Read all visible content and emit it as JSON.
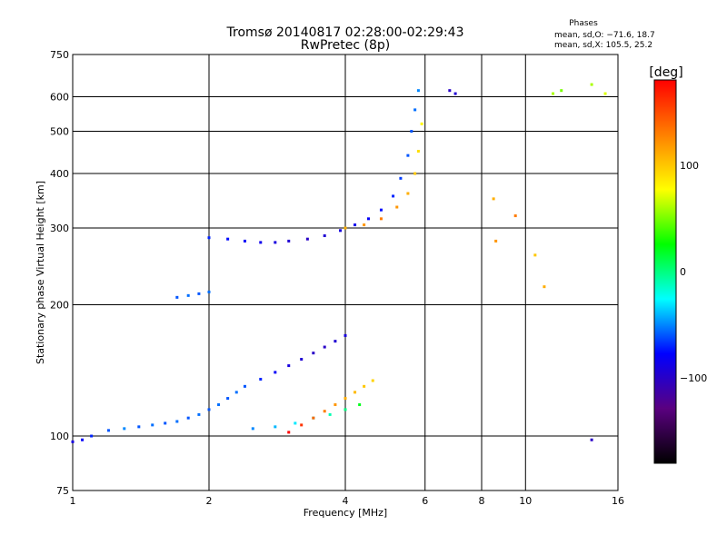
{
  "chart_data": {
    "type": "scatter",
    "title": "Tromsø 20140817 02:28:00-02:29:43",
    "subtitle": "RwPretec (8p)",
    "xlabel": "Frequency [MHz]",
    "ylabel": "Stationary phase Virtual Height [km]",
    "x_scale": "log",
    "y_scale": "log",
    "xlim": [
      1,
      16
    ],
    "ylim": [
      75,
      750
    ],
    "x_ticks": [
      1,
      2,
      4,
      6,
      8,
      10,
      16
    ],
    "x_tick_labels": [
      "1",
      "2",
      "4",
      "6",
      "8",
      "10",
      "16"
    ],
    "y_ticks": [
      75,
      100,
      200,
      300,
      400,
      500,
      600,
      750
    ],
    "y_tick_labels": [
      "75",
      "100",
      "200",
      "300",
      "400",
      "500",
      "600",
      "750"
    ],
    "grid": true,
    "phases_label": "Phases",
    "stats": [
      "mean, sd,O: −71.6, 18.7",
      "mean, sd,X: 105.5, 25.2"
    ],
    "colorbar": {
      "label": "[deg]",
      "range": [
        -180,
        180
      ],
      "ticks": [
        100,
        0,
        -100
      ],
      "tick_labels": [
        "100",
        "0",
        "−100"
      ],
      "colormap": [
        "#000000",
        "#5a0080",
        "#0000ff",
        "#00ffff",
        "#00ff00",
        "#ffff00",
        "#ff8000",
        "#ff0000"
      ]
    },
    "series": [
      {
        "points": [
          [
            1.0,
            97,
            -90
          ],
          [
            1.05,
            98,
            -80
          ],
          [
            1.1,
            100,
            -70
          ],
          [
            1.2,
            103,
            -60
          ],
          [
            1.3,
            104,
            -50
          ],
          [
            1.4,
            105,
            -60
          ],
          [
            1.5,
            106,
            -55
          ],
          [
            1.6,
            107,
            -60
          ],
          [
            1.7,
            108,
            -55
          ],
          [
            1.8,
            110,
            -60
          ],
          [
            1.9,
            112,
            -55
          ],
          [
            2.0,
            115,
            -60
          ],
          [
            2.1,
            118,
            -55
          ],
          [
            2.2,
            122,
            -60
          ],
          [
            2.3,
            126,
            -55
          ],
          [
            2.4,
            130,
            -60
          ],
          [
            2.6,
            135,
            -70
          ],
          [
            2.8,
            140,
            -80
          ],
          [
            3.0,
            145,
            -90
          ],
          [
            3.2,
            150,
            -95
          ],
          [
            3.4,
            155,
            -100
          ],
          [
            3.6,
            160,
            -100
          ],
          [
            3.8,
            165,
            -95
          ],
          [
            4.0,
            170,
            -90
          ],
          [
            2.5,
            104,
            -50
          ],
          [
            2.8,
            105,
            -40
          ],
          [
            3.1,
            107,
            -30
          ],
          [
            3.4,
            110,
            -20
          ],
          [
            3.7,
            112,
            -10
          ],
          [
            4.0,
            115,
            0
          ],
          [
            4.3,
            118,
            20
          ],
          [
            3.0,
            102,
            180
          ],
          [
            3.2,
            106,
            160
          ],
          [
            3.4,
            110,
            140
          ],
          [
            3.6,
            114,
            130
          ],
          [
            3.8,
            118,
            120
          ],
          [
            4.0,
            122,
            110
          ],
          [
            4.2,
            126,
            105
          ],
          [
            4.4,
            130,
            100
          ],
          [
            4.6,
            134,
            95
          ]
        ]
      },
      {
        "points": [
          [
            2.0,
            285,
            -70
          ],
          [
            2.2,
            283,
            -75
          ],
          [
            2.4,
            280,
            -80
          ],
          [
            2.6,
            278,
            -85
          ],
          [
            2.8,
            278,
            -90
          ],
          [
            3.0,
            280,
            -95
          ],
          [
            3.3,
            283,
            -100
          ],
          [
            3.6,
            288,
            -95
          ],
          [
            3.9,
            296,
            -90
          ],
          [
            4.2,
            305,
            -85
          ],
          [
            4.5,
            315,
            -80
          ],
          [
            4.8,
            330,
            -75
          ],
          [
            5.1,
            355,
            -70
          ],
          [
            5.3,
            390,
            -65
          ],
          [
            5.5,
            440,
            -60
          ],
          [
            5.6,
            500,
            -60
          ],
          [
            5.7,
            560,
            -55
          ],
          [
            5.8,
            620,
            -50
          ],
          [
            4.0,
            300,
            110
          ],
          [
            4.4,
            305,
            120
          ],
          [
            4.8,
            315,
            130
          ],
          [
            5.2,
            335,
            120
          ],
          [
            5.5,
            360,
            110
          ],
          [
            5.7,
            400,
            100
          ],
          [
            5.8,
            450,
            90
          ],
          [
            5.9,
            520,
            80
          ]
        ]
      },
      {
        "points": [
          [
            1.7,
            208,
            -60
          ],
          [
            1.8,
            210,
            -55
          ],
          [
            1.9,
            212,
            -60
          ],
          [
            2.0,
            214,
            -55
          ]
        ]
      },
      {
        "points": [
          [
            6.8,
            620,
            -100
          ],
          [
            7.0,
            610,
            -95
          ],
          [
            8.5,
            350,
            110
          ],
          [
            8.6,
            280,
            120
          ],
          [
            9.5,
            320,
            130
          ],
          [
            10.5,
            260,
            100
          ],
          [
            11.0,
            220,
            110
          ],
          [
            11.5,
            610,
            60
          ],
          [
            12.0,
            620,
            50
          ],
          [
            14.0,
            640,
            60
          ],
          [
            15.0,
            610,
            70
          ],
          [
            14.0,
            98,
            -100
          ]
        ]
      }
    ]
  }
}
